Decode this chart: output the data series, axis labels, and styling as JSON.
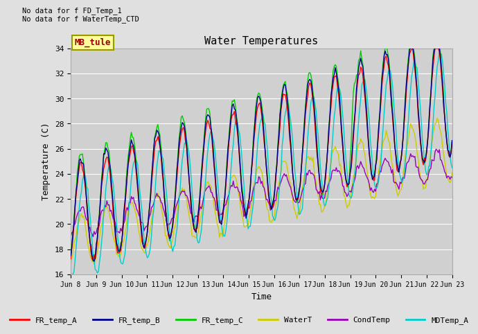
{
  "title": "Water Temperatures",
  "xlabel": "Time",
  "ylabel": "Temperature (C)",
  "ylim": [
    16,
    34
  ],
  "xlim": [
    0,
    15
  ],
  "annotations": [
    "No data for f FD_Temp_1",
    "No data for f WaterTemp_CTD"
  ],
  "mb_tule_label": "MB_tule",
  "xtick_labels": [
    "Jun 8",
    "Jun 9",
    "Jun 10",
    "Jun 11",
    "Jun 12",
    "Jun 13",
    "Jun 14",
    "Jun 15",
    "Jun 16",
    "Jun 17",
    "Jun 18",
    "Jun 19",
    "Jun 20",
    "Jun 21",
    "Jun 22",
    "Jun 23"
  ],
  "ytick_values": [
    16,
    18,
    20,
    22,
    24,
    26,
    28,
    30,
    32,
    34
  ],
  "legend_entries": [
    "FR_temp_A",
    "FR_temp_B",
    "FR_temp_C",
    "WaterT",
    "CondTemp",
    "MDTemp_A"
  ],
  "colors": {
    "FR_temp_A": "#ff0000",
    "FR_temp_B": "#00008b",
    "FR_temp_C": "#00cc00",
    "WaterT": "#cccc00",
    "CondTemp": "#9900bb",
    "MDTemp_A": "#00cccc"
  },
  "background_color": "#e0e0e0",
  "plot_bg_color": "#d0d0d0",
  "grid_color": "#ffffff",
  "mb_tule_box_color": "#ffff99",
  "mb_tule_text_color": "#990000",
  "mb_tule_edge_color": "#999900"
}
